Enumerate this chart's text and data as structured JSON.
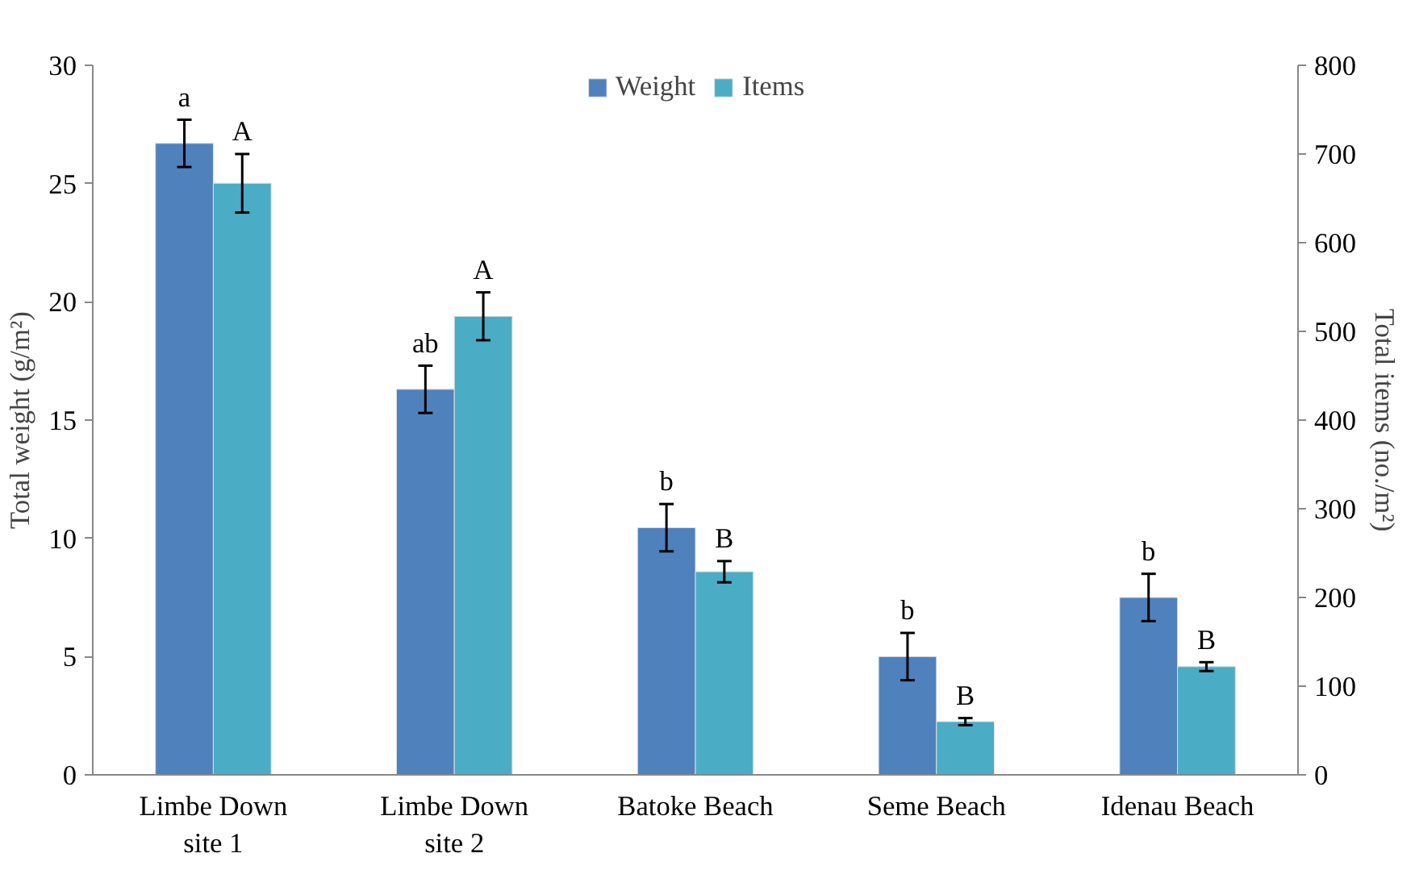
{
  "chart_data": {
    "type": "bar",
    "categories": [
      "Limbe Down\nsite 1",
      "Limbe Down\nsite 2",
      "Batoke Beach",
      "Seme Beach",
      "Idenau Beach"
    ],
    "ylabel": "Total weight (g/m²)",
    "y2label": "Total items (no./m²)",
    "ylim": [
      0,
      30
    ],
    "yticks": [
      0,
      5,
      10,
      15,
      20,
      25,
      30
    ],
    "y2lim": [
      0,
      800
    ],
    "y2ticks": [
      0,
      100,
      200,
      300,
      400,
      500,
      600,
      700,
      800
    ],
    "grid": false,
    "legend": "top",
    "series": [
      {
        "name": "Weight",
        "color": "#4f81bd",
        "values": [
          26.7,
          16.3,
          10.45,
          5.0,
          7.5
        ],
        "errors": [
          1.0,
          1.0,
          1.0,
          1.0,
          1.0
        ],
        "value_labels": [
          "a",
          "ab",
          "b",
          "b",
          "b"
        ]
      },
      {
        "name": "Items",
        "color": "#4bacc6",
        "axis": "y2",
        "values": [
          667,
          517,
          229,
          60,
          122
        ],
        "errors": [
          33,
          27,
          12,
          4,
          5
        ],
        "value_labels": [
          "A",
          "A",
          "B",
          "B",
          "B"
        ]
      }
    ]
  }
}
